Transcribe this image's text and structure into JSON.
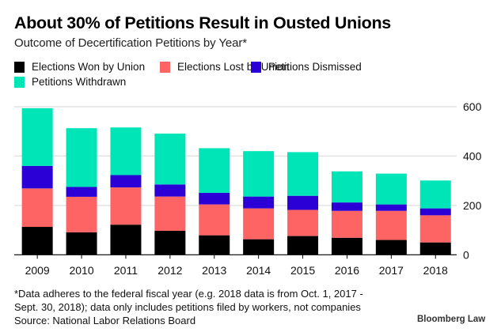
{
  "chart_data": {
    "type": "bar",
    "stacked": true,
    "title": "About 30% of Petitions Result in Ousted Unions",
    "subtitle": "Outcome of Decertification Petitions by Year*",
    "xlabel": "",
    "ylabel": "",
    "ylim": [
      0,
      600
    ],
    "yticks": [
      0,
      200,
      400,
      600
    ],
    "grid": true,
    "y_axis_position": "right",
    "legend_position": "top-left",
    "categories": [
      "2009",
      "2010",
      "2011",
      "2012",
      "2013",
      "2014",
      "2015",
      "2016",
      "2017",
      "2018"
    ],
    "series": [
      {
        "name": "Elections Won by Union",
        "color": "#000000",
        "values": [
          113,
          91,
          122,
          97,
          79,
          63,
          76,
          69,
          60,
          50
        ]
      },
      {
        "name": "Elections Lost by Union",
        "color": "#FF6464",
        "values": [
          156,
          144,
          151,
          139,
          125,
          125,
          106,
          109,
          118,
          110
        ]
      },
      {
        "name": "Petitions Dismissed",
        "color": "#2A00D6",
        "values": [
          91,
          40,
          50,
          49,
          47,
          48,
          57,
          34,
          26,
          28
        ]
      },
      {
        "name": "Petitions Withdrawn",
        "color": "#00E5B8",
        "values": [
          234,
          238,
          193,
          206,
          181,
          184,
          177,
          126,
          125,
          113
        ]
      }
    ]
  },
  "header": {
    "title": "About 30% of Petitions Result in Ousted Unions",
    "subtitle": "Outcome of Decertification Petitions by Year*"
  },
  "footer": {
    "note_line1": "*Data adheres to the federal fiscal year (e.g. 2018 data is from Oct. 1, 2017 -",
    "note_line2": "Sept. 30, 2018); data only includes petitions filed by workers, not companies",
    "source": "Source: National Labor Relations Board",
    "brand": "Bloomberg Law"
  },
  "colors": {
    "gridline": "#E2E2E2",
    "axis": "#000000"
  }
}
